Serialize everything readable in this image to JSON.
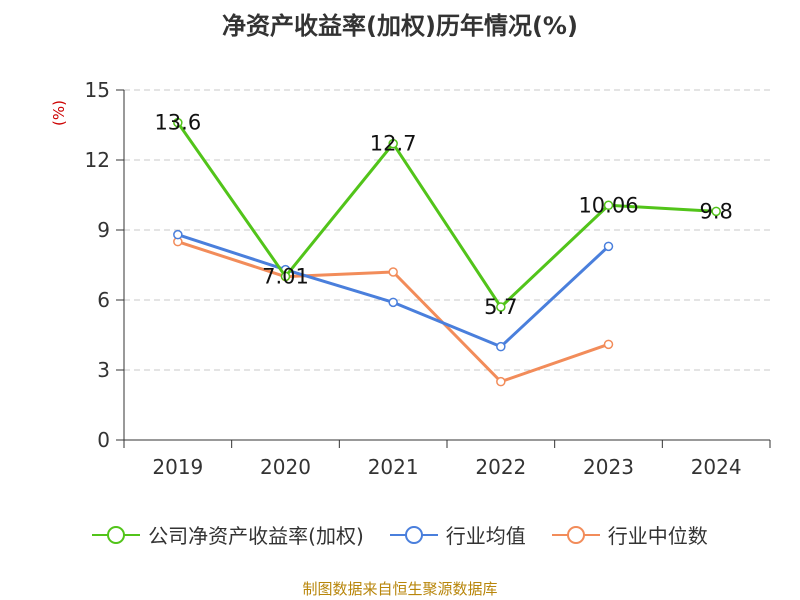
{
  "chart_data": {
    "type": "line",
    "title": "净资产收益率(加权)历年情况(%)",
    "ylabel": "(%)",
    "xlabel": "",
    "categories": [
      "2019",
      "2020",
      "2021",
      "2022",
      "2023",
      "2024"
    ],
    "ylim": [
      0,
      15
    ],
    "yticks": [
      0,
      3,
      6,
      9,
      12,
      15
    ],
    "grid": true,
    "legend_position": "bottom",
    "series": [
      {
        "name": "公司净资产收益率(加权)",
        "color": "#52c41a",
        "values": [
          13.6,
          7.01,
          12.7,
          5.7,
          10.06,
          9.8
        ],
        "labels": [
          "13.6",
          "7.01",
          "12.7",
          "5.7",
          "10.06",
          "9.8"
        ]
      },
      {
        "name": "行业均值",
        "color": "#4a7fdc",
        "values": [
          8.8,
          7.3,
          5.9,
          4.0,
          8.3,
          null
        ]
      },
      {
        "name": "行业中位数",
        "color": "#f28c5a",
        "values": [
          8.5,
          7.0,
          7.2,
          2.5,
          4.1,
          null
        ]
      }
    ]
  },
  "footer": {
    "source": "制图数据来自恒生聚源数据库"
  }
}
